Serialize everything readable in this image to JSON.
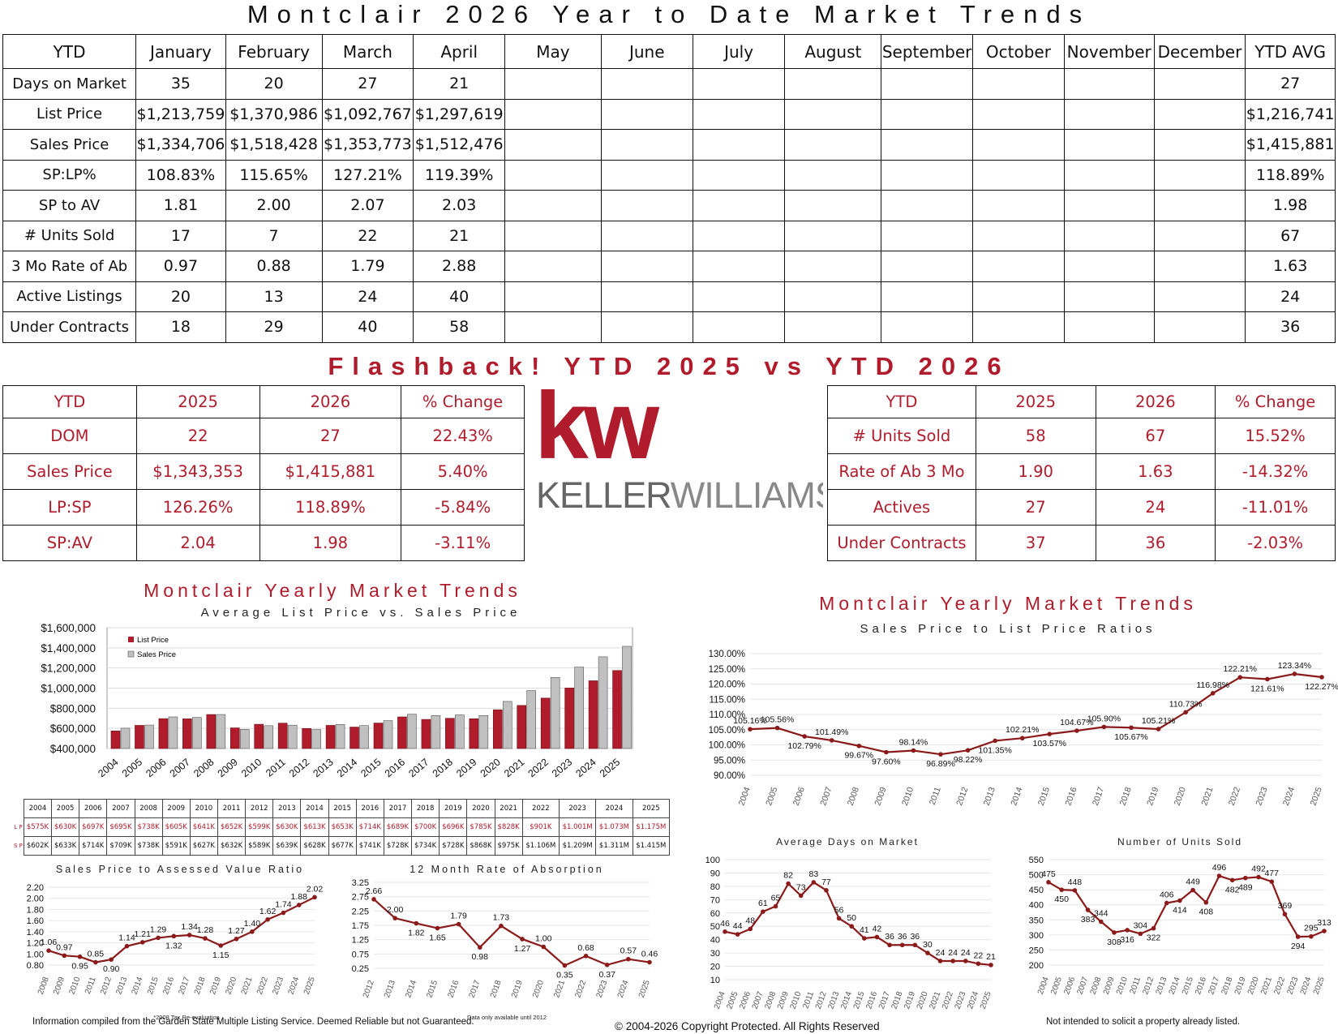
{
  "title": "Montclair 2026 Year to Date Market Trends",
  "ytd_table": {
    "header": [
      "YTD",
      "January",
      "February",
      "March",
      "April",
      "May",
      "June",
      "July",
      "August",
      "September",
      "October",
      "November",
      "December",
      "YTD AVG"
    ],
    "rows": [
      [
        "Days on Market",
        "35",
        "20",
        "27",
        "21",
        "",
        "",
        "",
        "",
        "",
        "",
        "",
        "",
        "27"
      ],
      [
        "List Price",
        "$1,213,759",
        "$1,370,986",
        "$1,092,767",
        "$1,297,619",
        "",
        "",
        "",
        "",
        "",
        "",
        "",
        "",
        "$1,216,741"
      ],
      [
        "Sales Price",
        "$1,334,706",
        "$1,518,428",
        "$1,353,773",
        "$1,512,476",
        "",
        "",
        "",
        "",
        "",
        "",
        "",
        "",
        "$1,415,881"
      ],
      [
        "SP:LP%",
        "108.83%",
        "115.65%",
        "127.21%",
        "119.39%",
        "",
        "",
        "",
        "",
        "",
        "",
        "",
        "",
        "118.89%"
      ],
      [
        "SP to AV",
        "1.81",
        "2.00",
        "2.07",
        "2.03",
        "",
        "",
        "",
        "",
        "",
        "",
        "",
        "",
        "1.98"
      ],
      [
        "# Units Sold",
        "17",
        "7",
        "22",
        "21",
        "",
        "",
        "",
        "",
        "",
        "",
        "",
        "",
        "67"
      ],
      [
        "3 Mo Rate of Ab",
        "0.97",
        "0.88",
        "1.79",
        "2.88",
        "",
        "",
        "",
        "",
        "",
        "",
        "",
        "",
        "1.63"
      ],
      [
        "Active Listings",
        "20",
        "13",
        "24",
        "40",
        "",
        "",
        "",
        "",
        "",
        "",
        "",
        "",
        "24"
      ],
      [
        "Under Contracts",
        "18",
        "29",
        "40",
        "58",
        "",
        "",
        "",
        "",
        "",
        "",
        "",
        "",
        "36"
      ]
    ]
  },
  "flashback_title": "Flashback! YTD 2025 vs YTD 2026",
  "flash_left": {
    "header": [
      "YTD",
      "2025",
      "2026",
      "% Change"
    ],
    "rows": [
      [
        "DOM",
        "22",
        "27",
        "22.43%"
      ],
      [
        "Sales Price",
        "$1,343,353",
        "$1,415,881",
        "5.40%"
      ],
      [
        "LP:SP",
        "126.26%",
        "118.89%",
        "-5.84%"
      ],
      [
        "SP:AV",
        "2.04",
        "1.98",
        "-3.11%"
      ]
    ]
  },
  "flash_right": {
    "header": [
      "YTD",
      "2025",
      "2026",
      "% Change"
    ],
    "rows": [
      [
        "# Units Sold",
        "58",
        "67",
        "15.52%"
      ],
      [
        "Rate of Ab 3 Mo",
        "1.90",
        "1.63",
        "-14.32%"
      ],
      [
        "Actives",
        "27",
        "24",
        "-11.01%"
      ],
      [
        "Under Contracts",
        "37",
        "36",
        "-2.03%"
      ]
    ]
  },
  "logo": {
    "kw": "kw",
    "name_a": "KELLER",
    "name_b": "WILLIAMS",
    "mark": "®",
    "color": "#b01c2c"
  },
  "colors": {
    "accent": "#b01c2c",
    "line": "#8b1a1a",
    "bar_sales": "#c0c0c0"
  },
  "footer": {
    "left": "Information compiled from the Garden State Multiple Listing Service. Deemed Reliable but not Guaranteed.",
    "center": "© 2004-2026 Copyright Protected. All Rights Reserved",
    "right": "Not intended to solicit a property already listed."
  },
  "chart_data": [
    {
      "id": "bar",
      "type": "bar",
      "title": "Montclair Yearly Market Trends",
      "subtitle": "Average List Price vs. Sales Price",
      "categories": [
        "2004",
        "2005",
        "2006",
        "2007",
        "2008",
        "2009",
        "2010",
        "2011",
        "2012",
        "2013",
        "2014",
        "2015",
        "2016",
        "2017",
        "2018",
        "2019",
        "2020",
        "2021",
        "2022",
        "2023",
        "2024",
        "2025"
      ],
      "series": [
        {
          "name": "List Price",
          "values": [
            575,
            630,
            697,
            695,
            738,
            605,
            641,
            652,
            599,
            630,
            613,
            653,
            714,
            689,
            700,
            696,
            785,
            828,
            901,
            1001,
            1073,
            1175
          ]
        },
        {
          "name": "Sales Price",
          "values": [
            602,
            633,
            714,
            709,
            738,
            591,
            627,
            632,
            589,
            639,
            628,
            677,
            741,
            728,
            734,
            728,
            868,
            975,
            1106,
            1209,
            1311,
            1415
          ]
        }
      ],
      "lp_labels": [
        "$575K",
        "$630K",
        "$697K",
        "$695K",
        "$738K",
        "$605K",
        "$641K",
        "$652K",
        "$599K",
        "$630K",
        "$613K",
        "$653K",
        "$714K",
        "$689K",
        "$700K",
        "$696K",
        "$785K",
        "$828K",
        "$901K",
        "$1.001M",
        "$1.073M",
        "$1.175M"
      ],
      "sp_labels": [
        "$602K",
        "$633K",
        "$714K",
        "$709K",
        "$738K",
        "$591K",
        "$627K",
        "$632K",
        "$589K",
        "$639K",
        "$628K",
        "$677K",
        "$741K",
        "$728K",
        "$734K",
        "$728K",
        "$868K",
        "$975K",
        "$1.106M",
        "$1.209M",
        "$1.311M",
        "$1.415M"
      ],
      "table_row_labels": [
        "L P",
        "S P"
      ],
      "ylim": [
        400000,
        1600000
      ],
      "yticks": [
        "$400,000",
        "$600,000",
        "$800,000",
        "$1,000,000",
        "$1,200,000",
        "$1,400,000",
        "$1,600,000"
      ]
    },
    {
      "id": "ratio",
      "type": "line",
      "title": "Montclair Yearly Market Trends",
      "subtitle": "Sales Price to List Price Ratios",
      "x": [
        "2004",
        "2005",
        "2006",
        "2007",
        "2008",
        "2009",
        "2010",
        "2011",
        "2012",
        "2013",
        "2014",
        "2015",
        "2016",
        "2017",
        "2018",
        "2019",
        "2020",
        "2021",
        "2022",
        "2023",
        "2024",
        "2025"
      ],
      "values": [
        105.16,
        105.56,
        102.79,
        101.49,
        99.67,
        97.6,
        98.14,
        96.89,
        98.22,
        101.35,
        102.21,
        103.57,
        104.67,
        105.9,
        105.67,
        105.21,
        110.73,
        116.98,
        122.21,
        121.61,
        123.34,
        122.27
      ],
      "labels": [
        "105.16%",
        "105.56%",
        "102.79%",
        "101.49%",
        "99.67%",
        "97.60%",
        "98.14%",
        "96.89%",
        "98.22%",
        "101.35%",
        "102.21%",
        "103.57%",
        "104.67%",
        "105.90%",
        "105.67%",
        "105.21%",
        "110.73%",
        "116.98%",
        "122.21%",
        "121.61%",
        "123.34%",
        "122.27%"
      ],
      "ylim": [
        90,
        130
      ],
      "yticks": [
        "90.00%",
        "95.00%",
        "100.00%",
        "105.00%",
        "110.00%",
        "115.00%",
        "120.00%",
        "125.00%",
        "130.00%"
      ]
    },
    {
      "id": "spav",
      "type": "line",
      "title": "Sales Price to Assessed Value Ratio",
      "x": [
        "2008",
        "2009",
        "2010",
        "2011",
        "2012",
        "2013",
        "2014",
        "2015",
        "2016",
        "2017",
        "2018",
        "2019",
        "2020",
        "2021",
        "2022",
        "2023",
        "2024",
        "2025"
      ],
      "values": [
        1.06,
        0.97,
        0.95,
        0.85,
        0.9,
        1.14,
        1.21,
        1.29,
        1.32,
        1.34,
        1.28,
        1.15,
        1.27,
        1.4,
        1.62,
        1.74,
        1.88,
        2.02
      ],
      "labels": [
        "1.06",
        "0.97",
        "0.95",
        "0.85",
        "0.90",
        "1.14",
        "1.21",
        "1.29",
        "1.32",
        "1.34",
        "1.28",
        "1.15",
        "1.27",
        "1.40",
        "1.62",
        "1.74",
        "1.88",
        "2.02"
      ],
      "ylim": [
        0.8,
        2.2
      ],
      "yticks": [
        "0.80",
        "1.00",
        "1.20",
        "1.40",
        "1.60",
        "1.80",
        "2.00",
        "2.20"
      ],
      "note": "*2008 Tax Re-evaluation"
    },
    {
      "id": "absorb",
      "type": "line",
      "title": "12 Month Rate of Absorption",
      "x": [
        "2012",
        "2013",
        "2014",
        "2015",
        "2016",
        "2017",
        "2018",
        "2019",
        "2020",
        "2021",
        "2022",
        "2023",
        "2024",
        "2025"
      ],
      "values": [
        2.66,
        2.0,
        1.82,
        1.65,
        1.79,
        0.98,
        1.73,
        1.27,
        1.0,
        0.35,
        0.68,
        0.37,
        0.57,
        0.46
      ],
      "labels": [
        "2.66",
        "2.00",
        "1.82",
        "1.65",
        "1.79",
        "0.98",
        "1.73",
        "1.27",
        "1.00",
        "0.35",
        "0.68",
        "0.37",
        "0.57",
        "0.46"
      ],
      "ylim": [
        0.25,
        3.25
      ],
      "yticks": [
        "0.25",
        "0.75",
        "1.25",
        "1.75",
        "2.25",
        "2.75",
        "3.25"
      ],
      "note": "Data only available until 2012"
    },
    {
      "id": "dom",
      "type": "line",
      "title": "Average Days on Market",
      "x": [
        "2004",
        "2005",
        "2006",
        "2007",
        "2008",
        "2009",
        "2010",
        "2011",
        "2012",
        "2013",
        "2014",
        "2015",
        "2016",
        "2017",
        "2018",
        "2019",
        "2020",
        "2021",
        "2022",
        "2023",
        "2024",
        "2025"
      ],
      "values": [
        46,
        44,
        48,
        61,
        65,
        82,
        73,
        83,
        77,
        56,
        50,
        41,
        42,
        36,
        36,
        36,
        30,
        24,
        24,
        24,
        22,
        21
      ],
      "labels": [
        "46",
        "44",
        "48",
        "61",
        "65",
        "82",
        "73",
        "83",
        "77",
        "56",
        "50",
        "41",
        "42",
        "36",
        "36",
        "36",
        "30",
        "24",
        "24",
        "24",
        "22",
        "21"
      ],
      "ylim": [
        10,
        100
      ],
      "yticks": [
        "10",
        "20",
        "30",
        "40",
        "50",
        "60",
        "70",
        "80",
        "90",
        "100"
      ]
    },
    {
      "id": "units",
      "type": "line",
      "title": "Number of Units Sold",
      "x": [
        "2004",
        "2005",
        "2006",
        "2007",
        "2008",
        "2009",
        "2010",
        "2011",
        "2012",
        "2013",
        "2014",
        "2015",
        "2016",
        "2017",
        "2018",
        "2019",
        "2020",
        "2021",
        "2022",
        "2023",
        "2024",
        "2025"
      ],
      "values": [
        475,
        450,
        448,
        383,
        344,
        308,
        316,
        304,
        322,
        406,
        414,
        449,
        408,
        496,
        482,
        489,
        492,
        477,
        369,
        294,
        295,
        313
      ],
      "labels": [
        "475",
        "450",
        "448",
        "383",
        "344",
        "308",
        "316",
        "304",
        "322",
        "406",
        "414",
        "449",
        "408",
        "496",
        "482",
        "489",
        "492",
        "477",
        "369",
        "294",
        "295",
        "313"
      ],
      "ylim": [
        200,
        550
      ],
      "yticks": [
        "200",
        "250",
        "300",
        "350",
        "400",
        "450",
        "500",
        "550"
      ]
    }
  ]
}
